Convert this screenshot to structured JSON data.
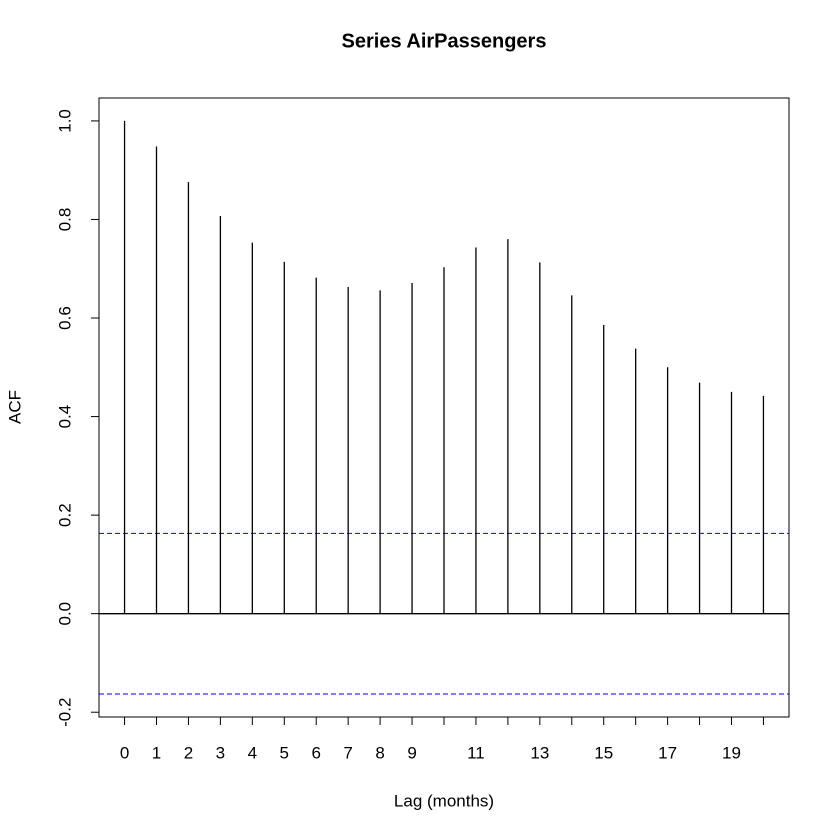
{
  "chart_data": {
    "type": "acf",
    "title": "Series  AirPassengers",
    "xlabel": "Lag (months)",
    "ylabel": "ACF",
    "x": [
      0,
      1,
      2,
      3,
      4,
      5,
      6,
      7,
      8,
      9,
      10,
      11,
      12,
      13,
      14,
      15,
      16,
      17,
      18,
      19,
      20
    ],
    "values": [
      1.0,
      0.948,
      0.876,
      0.807,
      0.753,
      0.714,
      0.682,
      0.663,
      0.656,
      0.671,
      0.703,
      0.743,
      0.76,
      0.713,
      0.646,
      0.586,
      0.538,
      0.5,
      0.469,
      0.45,
      0.442
    ],
    "color": "#000000",
    "ci_lines": [
      0.163,
      -0.163
    ],
    "ci_color": "#0000ff",
    "xlim": [
      -0.8,
      20.8
    ],
    "ylim": [
      -0.2097,
      1.0465
    ],
    "xticks": [
      0,
      1,
      2,
      3,
      4,
      5,
      6,
      7,
      8,
      9,
      {
        "value": 10,
        "label": null
      },
      11,
      {
        "value": 12,
        "label": null
      },
      13,
      {
        "value": 14,
        "label": null
      },
      15,
      {
        "value": 16,
        "label": null
      },
      17,
      {
        "value": 18,
        "label": null
      },
      19,
      {
        "value": 20,
        "label": null
      }
    ],
    "yticks": [
      -0.2,
      {
        "value": 0,
        "label": "0.0"
      },
      0.2,
      0.4,
      0.6,
      0.8,
      {
        "value": 1,
        "label": "1.0"
      }
    ]
  }
}
